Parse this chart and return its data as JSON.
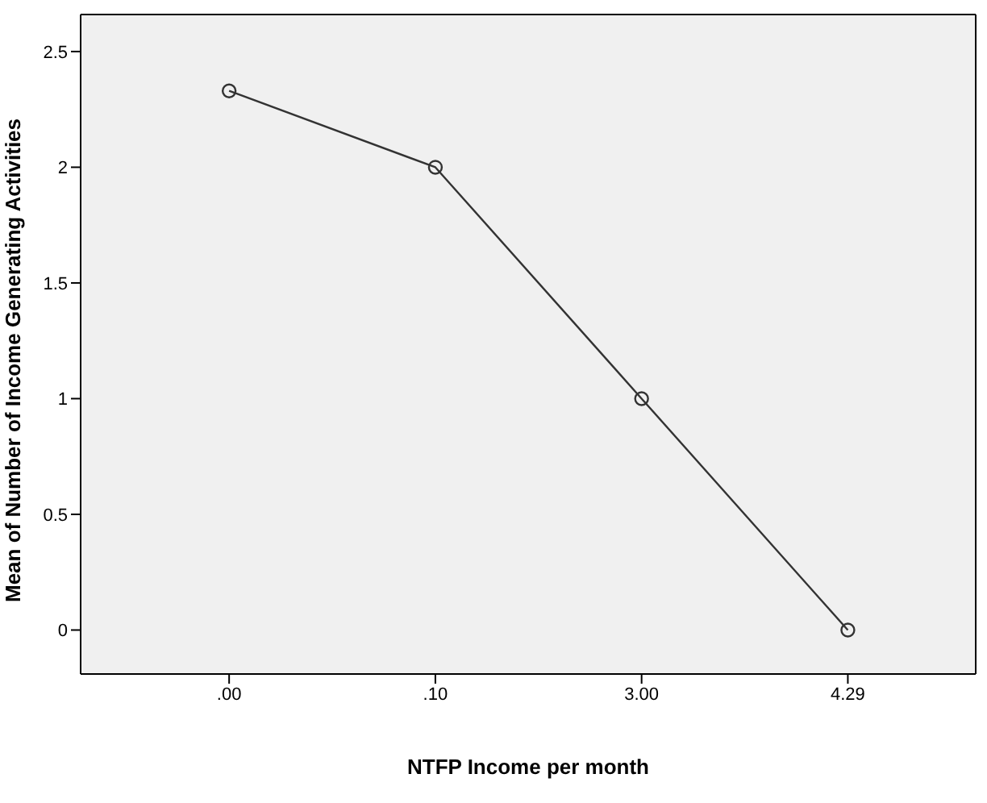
{
  "chart_data": {
    "type": "line",
    "xlabel": "NTFP Income per month",
    "ylabel": "Mean of Number of Income Generating Activities",
    "categories": [
      ".00",
      ".10",
      "3.00",
      "4.29"
    ],
    "series": [
      {
        "color": "#333333",
        "values": [
          2.33,
          2.0,
          1.0,
          0
        ]
      }
    ],
    "ylim": [
      -0.19,
      2.66
    ],
    "yticks": [
      0,
      0.5,
      1,
      1.5,
      2,
      2.5
    ],
    "marker": "circle",
    "grid": false
  }
}
